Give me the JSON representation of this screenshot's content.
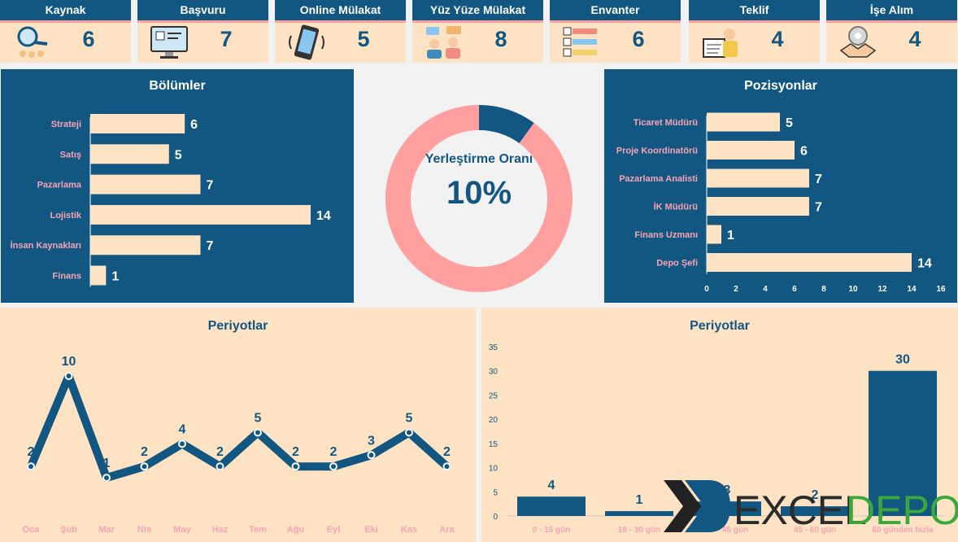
{
  "kpis": [
    {
      "label": "Kaynak",
      "value": "6",
      "icon": "magnifier-network-icon"
    },
    {
      "label": "Başvuru",
      "value": "7",
      "icon": "monitor-application-icon"
    },
    {
      "label": "Online Mülakat",
      "value": "5",
      "icon": "smartphone-call-icon"
    },
    {
      "label": "Yüz Yüze Mülakat",
      "value": "8",
      "icon": "meeting-people-icon"
    },
    {
      "label": "Envanter",
      "value": "6",
      "icon": "numbered-list-icon"
    },
    {
      "label": "Teklif",
      "value": "4",
      "icon": "offer-document-icon"
    },
    {
      "label": "İşe Alım",
      "value": "4",
      "icon": "handshake-icon"
    }
  ],
  "donut": {
    "label": "Yerleştirme Oranı",
    "value_text": "10%",
    "fraction": 0.1
  },
  "colors": {
    "navy": "#125782",
    "peach": "#fde3c3",
    "pink": "#ff9f9f",
    "label_pink": "#f6a3b4"
  },
  "logo": {
    "text1": "EXCEL",
    "text2": "DEPO"
  },
  "chart_data": [
    {
      "type": "bar",
      "orientation": "horizontal",
      "title": "Bölümler",
      "categories": [
        "Strateji",
        "Satış",
        "Pazarlama",
        "Lojistik",
        "İnsan Kaynakları",
        "Finans"
      ],
      "values": [
        6,
        5,
        7,
        14,
        7,
        1
      ]
    },
    {
      "type": "bar",
      "orientation": "horizontal",
      "title": "Pozisyonlar",
      "categories": [
        "Ticaret Müdürü",
        "Proje Koordinatörü",
        "Pazarlama Analisti",
        "İK Müdürü",
        "Finans Uzmanı",
        "Depo Şefi"
      ],
      "values": [
        5,
        6,
        7,
        7,
        1,
        14
      ],
      "xticks": [
        "0",
        "2",
        "4",
        "6",
        "8",
        "10",
        "12",
        "14",
        "16"
      ],
      "xlim": [
        0,
        16
      ]
    },
    {
      "type": "line",
      "title": "Periyotlar",
      "categories": [
        "Oca",
        "Şub",
        "Mar",
        "Nis",
        "May",
        "Haz",
        "Tem",
        "Ağu",
        "Eyl",
        "Eki",
        "Kas",
        "Ara"
      ],
      "values": [
        2,
        10,
        1,
        2,
        4,
        2,
        5,
        2,
        2,
        3,
        5,
        2
      ]
    },
    {
      "type": "bar",
      "title": "Periyotlar",
      "categories": [
        "0 - 15 gün",
        "16 - 30 gün",
        "31 - 45 gün",
        "45 - 60 gün",
        "60 günden fazla"
      ],
      "values": [
        4,
        1,
        3,
        2,
        30
      ],
      "yticks": [
        "0",
        "5",
        "10",
        "15",
        "20",
        "25",
        "30",
        "35"
      ],
      "ylim": [
        0,
        35
      ]
    }
  ]
}
